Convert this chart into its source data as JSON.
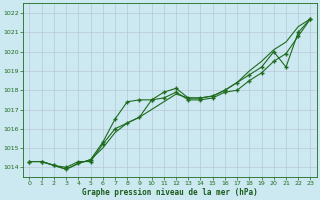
{
  "x": [
    0,
    1,
    2,
    3,
    4,
    5,
    6,
    7,
    8,
    9,
    10,
    11,
    12,
    13,
    14,
    15,
    16,
    17,
    18,
    19,
    20,
    21,
    22,
    23
  ],
  "y_smooth": [
    1014.3,
    1014.3,
    1014.1,
    1013.9,
    1014.2,
    1014.4,
    1015.0,
    1015.8,
    1016.3,
    1016.6,
    1017.0,
    1017.4,
    1017.8,
    1017.6,
    1017.6,
    1017.7,
    1018.0,
    1018.4,
    1019.0,
    1019.5,
    1020.1,
    1020.5,
    1021.3,
    1021.7
  ],
  "y_upper": [
    1014.3,
    1014.3,
    1014.1,
    1013.9,
    1014.2,
    1014.4,
    1015.3,
    1016.5,
    1017.4,
    1017.5,
    1017.5,
    1017.9,
    1018.1,
    1017.6,
    1017.6,
    1017.7,
    1018.0,
    1018.4,
    1018.8,
    1019.2,
    1020.0,
    1019.2,
    1021.0,
    1021.7
  ],
  "y_lower": [
    1014.3,
    1014.3,
    1014.1,
    1014.0,
    1014.3,
    1014.3,
    1015.2,
    1016.0,
    1016.3,
    1016.6,
    1017.5,
    1017.6,
    1017.9,
    1017.5,
    1017.5,
    1017.6,
    1017.9,
    1018.0,
    1018.5,
    1018.9,
    1019.5,
    1019.9,
    1020.8,
    1021.7
  ],
  "bg_color": "#cce8f0",
  "grid_color": "#b8c8d8",
  "line_color": "#1e6b1e",
  "xlabel": "Graphe pression niveau de la mer (hPa)",
  "xlabel_color": "#1a5c1a",
  "tick_color": "#1e6b1e",
  "ylim": [
    1013.5,
    1022.5
  ],
  "yticks": [
    1014,
    1015,
    1016,
    1017,
    1018,
    1019,
    1020,
    1021,
    1022
  ],
  "xticks": [
    0,
    1,
    2,
    3,
    4,
    5,
    6,
    7,
    8,
    9,
    10,
    11,
    12,
    13,
    14,
    15,
    16,
    17,
    18,
    19,
    20,
    21,
    22,
    23
  ]
}
